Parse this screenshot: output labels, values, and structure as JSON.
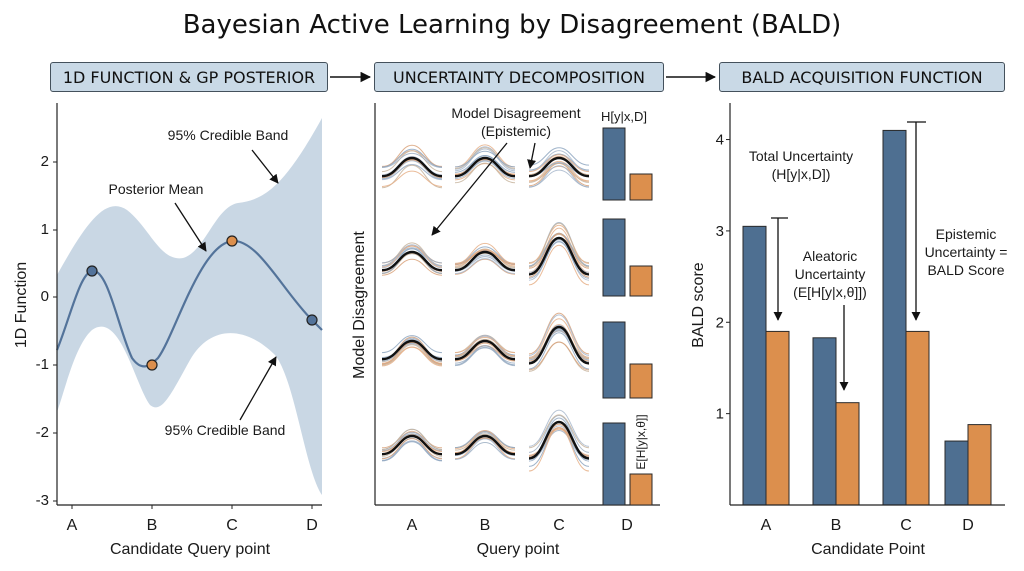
{
  "title": "Bayesian Active Learning by Disagreement (BALD)",
  "panels": {
    "p1_header": "1D FUNCTION & GP POSTERIOR",
    "p2_header": "UNCERTAINTY DECOMPOSITION",
    "p3_header": "BALD ACQUISITION FUNCTION"
  },
  "p1": {
    "ylabel": "1D Function",
    "xlabel": "Candidate Query point",
    "yticks": [
      "2",
      "1",
      "0",
      "-1",
      "-2",
      "-3"
    ],
    "xticks": [
      "A",
      "B",
      "C",
      "D"
    ],
    "ann_band_top": "95% Credible Band",
    "ann_mean": "Posterior Mean",
    "ann_band_bottom": "95% Credible Band"
  },
  "p2": {
    "ylabel": "Model Disagreement",
    "xlabel": "Query point",
    "xticks": [
      "A",
      "B",
      "C",
      "D"
    ],
    "ann_disagreement": "Model Disagreement",
    "ann_epistemic": "(Epistemic)",
    "ann_entropy": "H[y|x,D]",
    "ann_expected_entropy": "E[H[y|x,θ]]"
  },
  "p3": {
    "ann_total_1": "Total Uncertainty",
    "ann_total_2": "(H[y|x,D])",
    "ann_aleatoric_1": "Aleatoric",
    "ann_aleatoric_2": "Uncertainty",
    "ann_aleatoric_3": "(E[H[y|x,θ]])",
    "ann_epistemic_1": "Epistemic",
    "ann_epistemic_2": "Uncertainty =",
    "ann_epistemic_3": "BALD Score"
  },
  "colors": {
    "blue": "#4e6f91",
    "orange": "#dc8f4d",
    "band": "#c9d7e4",
    "mean": "#53739a"
  },
  "chart_data": {
    "type": "bar",
    "categories": [
      "A",
      "B",
      "C",
      "D"
    ],
    "series": [
      {
        "values": [
          3.05,
          1.83,
          4.1,
          0.7
        ]
      },
      {
        "values": [
          1.9,
          1.12,
          1.9,
          0.88
        ]
      }
    ],
    "xlabel": "Candidate Point",
    "ylabel": "BALD score",
    "yticks": [
      "1",
      "2",
      "3",
      "4"
    ],
    "ylim": [
      0,
      4.4
    ],
    "grid": false
  }
}
